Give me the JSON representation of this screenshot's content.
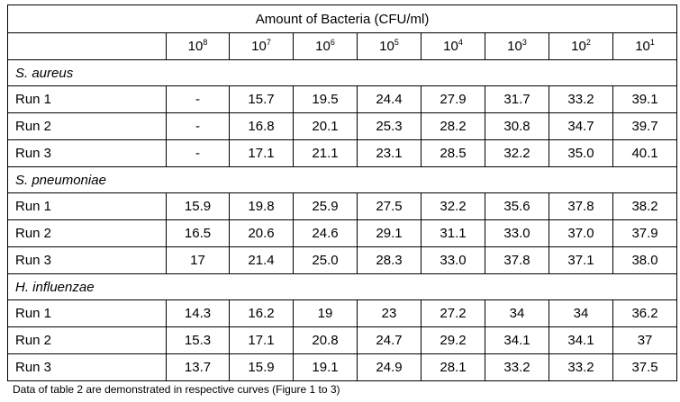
{
  "table": {
    "title": "Amount of Bacteria (CFU/ml)",
    "columns": [
      {
        "base": "10",
        "exp": "8"
      },
      {
        "base": "10",
        "exp": "7"
      },
      {
        "base": "10",
        "exp": "6"
      },
      {
        "base": "10",
        "exp": "5"
      },
      {
        "base": "10",
        "exp": "4"
      },
      {
        "base": "10",
        "exp": "3"
      },
      {
        "base": "10",
        "exp": "2"
      },
      {
        "base": "10",
        "exp": "1"
      }
    ],
    "sections": [
      {
        "name": "S. aureus",
        "rows": [
          {
            "label": "Run 1",
            "values": [
              "-",
              "15.7",
              "19.5",
              "24.4",
              "27.9",
              "31.7",
              "33.2",
              "39.1"
            ]
          },
          {
            "label": "Run 2",
            "values": [
              "-",
              "16.8",
              "20.1",
              "25.3",
              "28.2",
              "30.8",
              "34.7",
              "39.7"
            ]
          },
          {
            "label": "Run 3",
            "values": [
              "-",
              "17.1",
              "21.1",
              "23.1",
              "28.5",
              "32.2",
              "35.0",
              "40.1"
            ]
          }
        ]
      },
      {
        "name": "S. pneumoniae",
        "rows": [
          {
            "label": "Run 1",
            "values": [
              "15.9",
              "19.8",
              "25.9",
              "27.5",
              "32.2",
              "35.6",
              "37.8",
              "38.2"
            ]
          },
          {
            "label": "Run 2",
            "values": [
              "16.5",
              "20.6",
              "24.6",
              "29.1",
              "31.1",
              "33.0",
              "37.0",
              "37.9"
            ]
          },
          {
            "label": "Run 3",
            "values": [
              "17",
              "21.4",
              "25.0",
              "28.3",
              "33.0",
              "37.8",
              "37.1",
              "38.0"
            ]
          }
        ]
      },
      {
        "name": "H. influenzae",
        "rows": [
          {
            "label": "Run 1",
            "values": [
              "14.3",
              "16.2",
              "19",
              "23",
              "27.2",
              "34",
              "34",
              "36.2"
            ]
          },
          {
            "label": "Run 2",
            "values": [
              "15.3",
              "17.1",
              "20.8",
              "24.7",
              "29.2",
              "34.1",
              "34.1",
              "37"
            ]
          },
          {
            "label": "Run 3",
            "values": [
              "13.7",
              "15.9",
              "19.1",
              "24.9",
              "28.1",
              "33.2",
              "33.2",
              "37.5"
            ]
          }
        ]
      }
    ]
  },
  "caption": "Data of table 2 are demonstrated in respective curves (Figure 1 to 3)"
}
